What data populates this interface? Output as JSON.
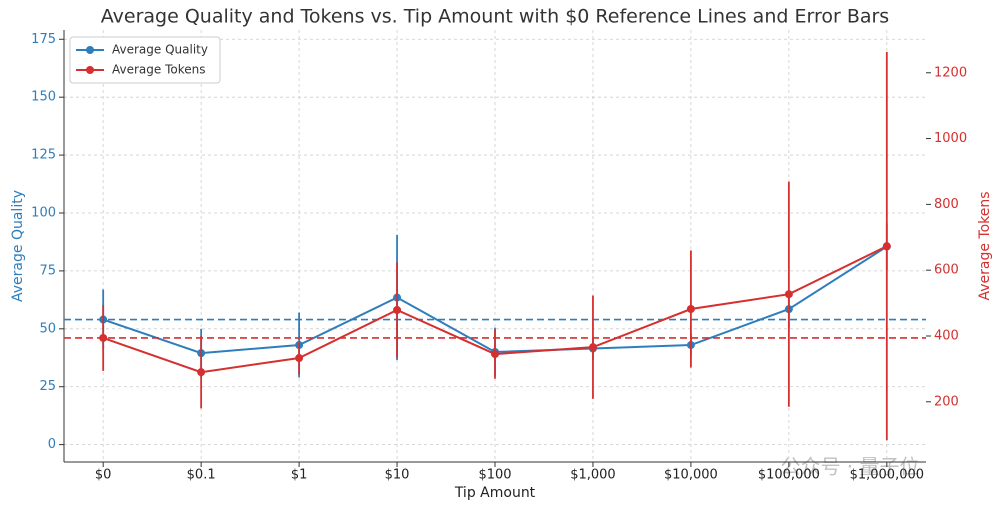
{
  "chart_data": {
    "type": "line",
    "title": "Average Quality and Tokens vs. Tip Amount with $0 Reference Lines and Error Bars",
    "x_label": "Tip Amount",
    "y_label": "Average Quality",
    "y2_label": "Average Tokens",
    "categories": [
      "$0",
      "$0.1",
      "$1",
      "$10",
      "$100",
      "$1,000",
      "$10,000",
      "$100,000",
      "$1,000,000"
    ],
    "series": [
      {
        "name": "Average Quality",
        "color": "#2e7ebc",
        "values": [
          54,
          39.5,
          43,
          63.5,
          40,
          41.5,
          43,
          58.5,
          85.5
        ],
        "errors": [
          13,
          10.5,
          14,
          27,
          10.5,
          5,
          5,
          8,
          10
        ],
        "reference": 54
      },
      {
        "name": "Average Tokens",
        "color": "#d62f2f",
        "axis": "y2",
        "values": [
          394,
          290,
          333,
          479,
          345,
          366,
          482,
          527,
          673
        ],
        "errors": [
          100,
          110,
          50,
          145,
          75,
          157,
          178,
          342,
          590
        ],
        "reference": 394
      }
    ],
    "ylim": [
      -7.5,
      179
    ],
    "yticks": [
      0,
      25,
      50,
      75,
      100,
      125,
      150,
      175
    ],
    "y2lim": [
      17,
      1330
    ],
    "y2ticks": [
      200,
      400,
      600,
      800,
      1000,
      1200
    ],
    "grid": true,
    "legend": "upper left",
    "watermark": "公众号 · 量子位"
  }
}
